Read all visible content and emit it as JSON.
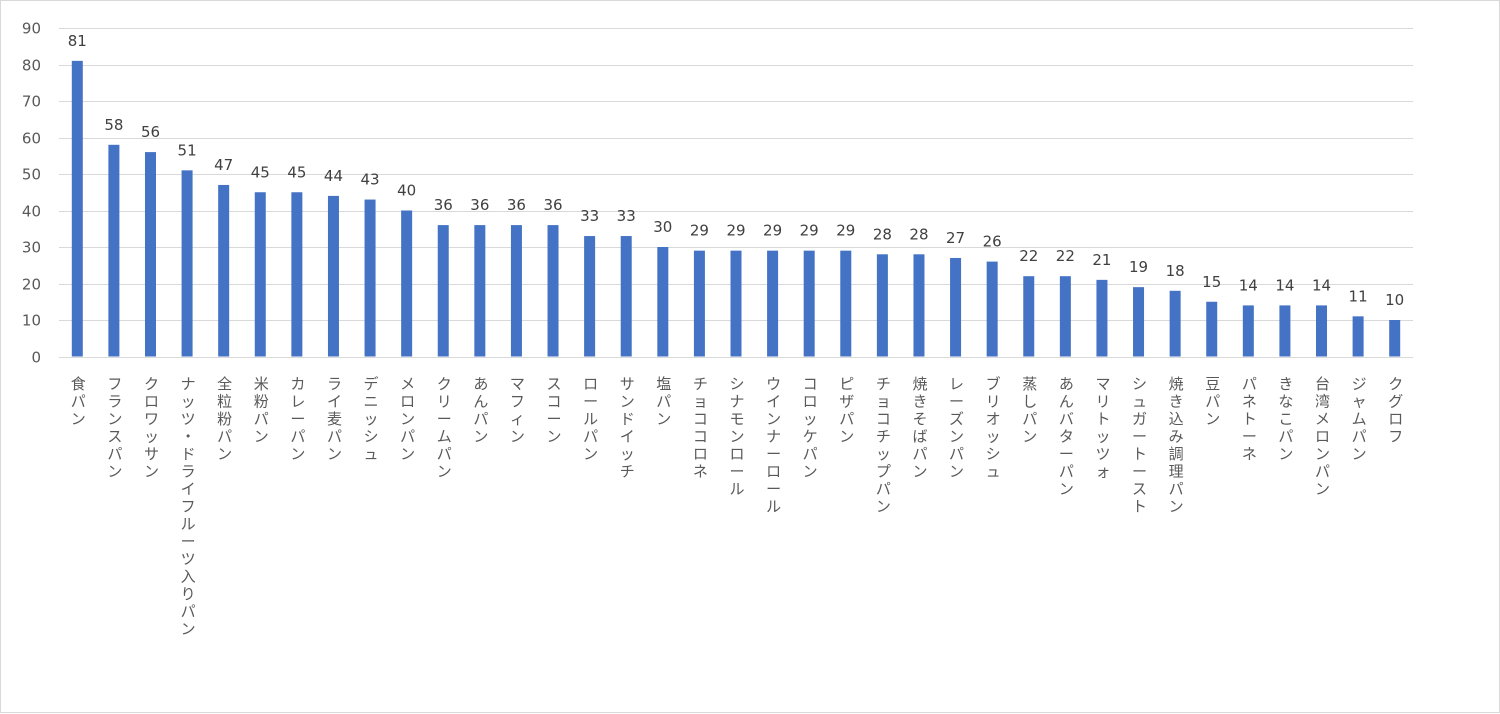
{
  "chart_data": {
    "type": "bar",
    "title": "",
    "xlabel": "",
    "ylabel": "",
    "ylim": [
      0,
      90
    ],
    "yticks": [
      0,
      10,
      20,
      30,
      40,
      50,
      60,
      70,
      80,
      90
    ],
    "grid": true,
    "legend": "none",
    "bar_color": "#4472c4",
    "categories": [
      "食パン",
      "フランスパン",
      "クロワッサン",
      "ナッツ・ドライフルーツ入りパン",
      "全粒粉パン",
      "米粉パン",
      "カレーパン",
      "ライ麦パン",
      "デニッシュ",
      "メロンパン",
      "クリームパン",
      "あんパン",
      "マフィン",
      "スコーン",
      "ロールパン",
      "サンドイッチ",
      "塩パン",
      "チョココロネ",
      "シナモンロール",
      "ウインナーロール",
      "コロッケパン",
      "ピザパン",
      "チョコチップパン",
      "焼きそばパン",
      "レーズンパン",
      "ブリオッシュ",
      "蒸しパン",
      "あんバターパン",
      "マリトッツォ",
      "シュガートースト",
      "焼き込み調理パン",
      "豆パン",
      "パネトーネ",
      "きなこパン",
      "台湾メロンパン",
      "ジャムパン",
      "クグロフ"
    ],
    "values": [
      81,
      58,
      56,
      51,
      47,
      45,
      45,
      44,
      43,
      40,
      36,
      36,
      36,
      36,
      33,
      33,
      30,
      29,
      29,
      29,
      29,
      29,
      28,
      28,
      27,
      26,
      22,
      22,
      21,
      19,
      18,
      15,
      14,
      14,
      14,
      11,
      10
    ]
  }
}
